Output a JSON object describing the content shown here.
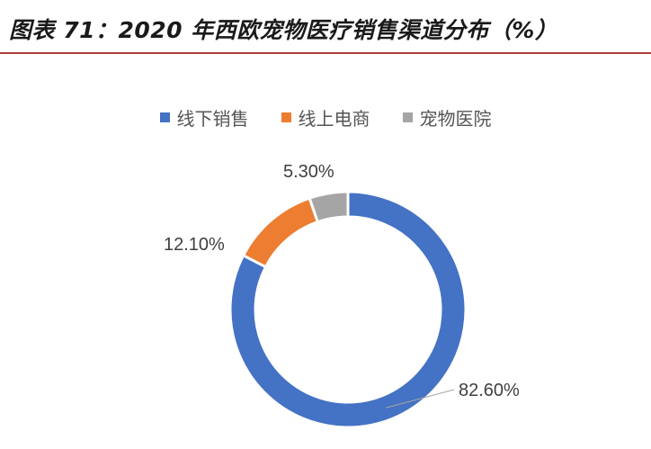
{
  "title": "图表 71：2020 年西欧宠物医疗销售渠道分布（%）",
  "chart_data": {
    "type": "pie",
    "donut": true,
    "legend_position": "top",
    "categories": [
      "线下销售",
      "线上电商",
      "宠物医院"
    ],
    "values": [
      82.6,
      12.1,
      5.3
    ],
    "labels": [
      "82.60%",
      "12.10%",
      "5.30%"
    ],
    "colors": [
      "#4472c4",
      "#ed7d31",
      "#a5a5a5"
    ]
  }
}
